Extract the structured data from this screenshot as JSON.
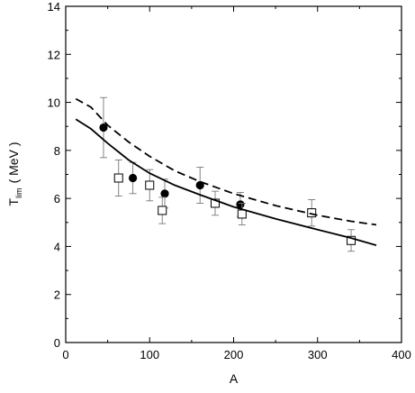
{
  "chart_data": {
    "type": "scatter",
    "title": "",
    "xlabel": "A",
    "ylabel": {
      "main": "T",
      "sub": "lim",
      "unit": "( MeV )"
    },
    "xlim": [
      0,
      400
    ],
    "ylim": [
      0,
      14
    ],
    "xticks": [
      0,
      100,
      200,
      300,
      400
    ],
    "yticks": [
      0,
      2,
      4,
      6,
      8,
      10,
      12,
      14
    ],
    "grid": false,
    "legend": "none",
    "series": [
      {
        "marker": "filled-circle",
        "color": "#000000",
        "points": [
          {
            "x": 45,
            "y": 8.95,
            "err": 1.25
          },
          {
            "x": 80,
            "y": 6.85,
            "err": 0.65
          },
          {
            "x": 118,
            "y": 6.2,
            "err": 0.6
          },
          {
            "x": 160,
            "y": 6.55,
            "err": 0.75
          },
          {
            "x": 208,
            "y": 5.75,
            "err": 0.5
          }
        ]
      },
      {
        "marker": "open-square",
        "color": "#000000",
        "points": [
          {
            "x": 63,
            "y": 6.85,
            "err": 0.75
          },
          {
            "x": 100,
            "y": 6.55,
            "err": 0.65
          },
          {
            "x": 115,
            "y": 5.5,
            "err": 0.55
          },
          {
            "x": 178,
            "y": 5.8,
            "err": 0.5
          },
          {
            "x": 210,
            "y": 5.35,
            "err": 0.45
          },
          {
            "x": 293,
            "y": 5.4,
            "err": 0.55
          },
          {
            "x": 340,
            "y": 4.25,
            "err": 0.45
          }
        ]
      },
      {
        "line": "dashed",
        "color": "#000000",
        "points": [
          {
            "x": 12,
            "y": 10.15
          },
          {
            "x": 30,
            "y": 9.8
          },
          {
            "x": 50,
            "y": 9.05
          },
          {
            "x": 75,
            "y": 8.35
          },
          {
            "x": 100,
            "y": 7.75
          },
          {
            "x": 130,
            "y": 7.15
          },
          {
            "x": 160,
            "y": 6.7
          },
          {
            "x": 200,
            "y": 6.2
          },
          {
            "x": 250,
            "y": 5.7
          },
          {
            "x": 300,
            "y": 5.3
          },
          {
            "x": 340,
            "y": 5.05
          },
          {
            "x": 370,
            "y": 4.9
          }
        ]
      },
      {
        "line": "solid",
        "color": "#000000",
        "points": [
          {
            "x": 12,
            "y": 9.3
          },
          {
            "x": 30,
            "y": 8.9
          },
          {
            "x": 50,
            "y": 8.3
          },
          {
            "x": 75,
            "y": 7.6
          },
          {
            "x": 100,
            "y": 7.05
          },
          {
            "x": 130,
            "y": 6.55
          },
          {
            "x": 160,
            "y": 6.15
          },
          {
            "x": 200,
            "y": 5.65
          },
          {
            "x": 250,
            "y": 5.15
          },
          {
            "x": 300,
            "y": 4.7
          },
          {
            "x": 340,
            "y": 4.35
          },
          {
            "x": 370,
            "y": 4.05
          }
        ]
      }
    ]
  }
}
